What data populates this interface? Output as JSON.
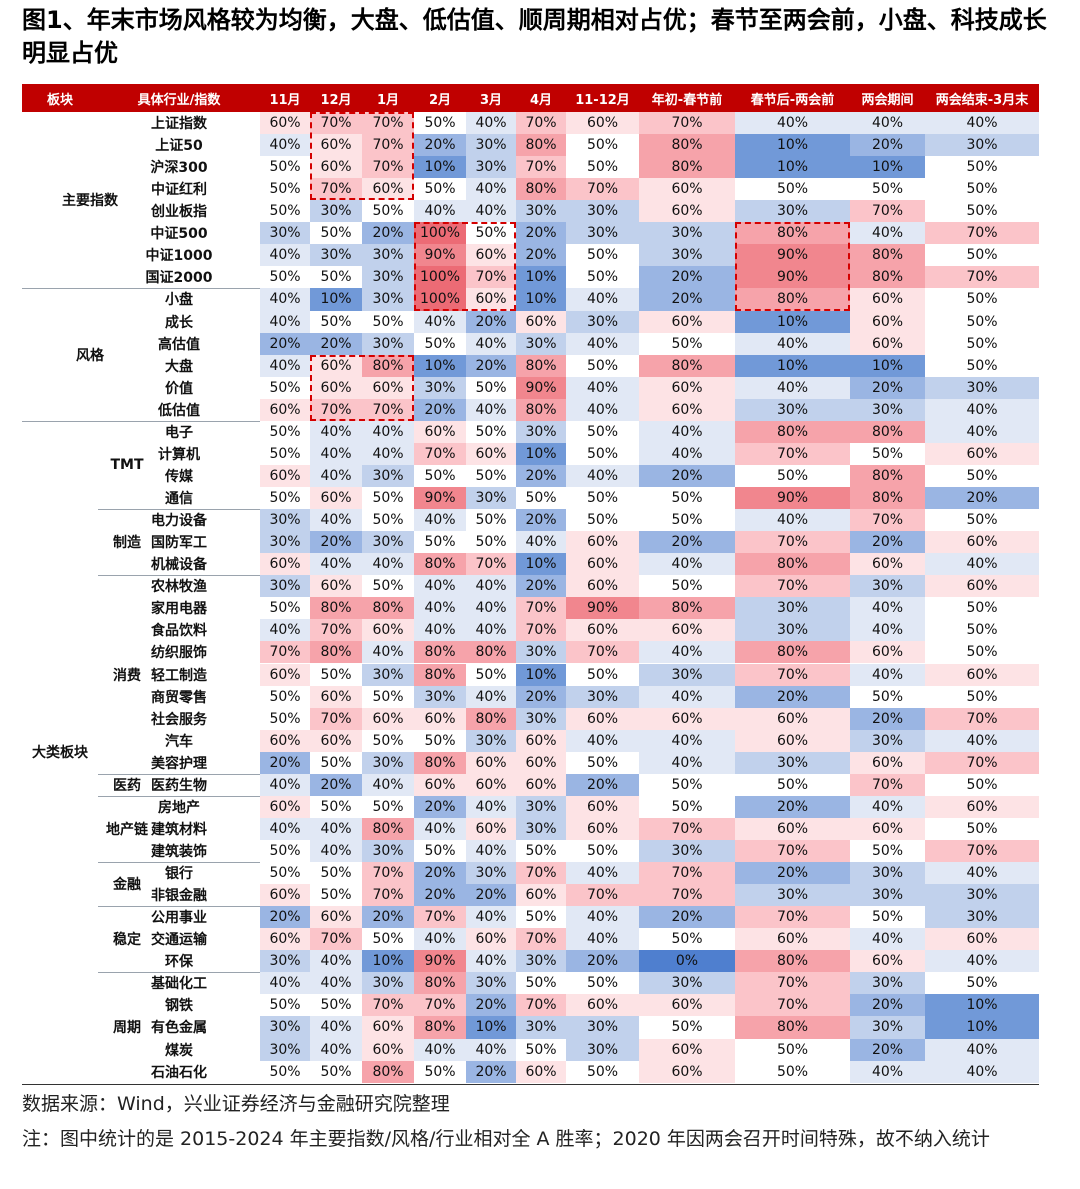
{
  "title": "图1、年末市场风格较为均衡，大盘、低估值、顺周期相对占优；春节至两会前，小盘、科技成长明显占优",
  "headers": [
    "板块",
    "具体行业/指数",
    "11月",
    "12月",
    "1月",
    "2月",
    "3月",
    "4月",
    "11-12月",
    "年初-春节前",
    "春节后-两会前",
    "两会期间",
    "两会结束-3月末"
  ],
  "groups": [
    {
      "label": "主要指数",
      "start": 0,
      "end": 8
    },
    {
      "label": "风格",
      "start": 8,
      "end": 14
    },
    {
      "label": "大类板块",
      "start": 14,
      "end": 44
    }
  ],
  "subgroups": [
    {
      "label": "TMT",
      "start": 14,
      "end": 18
    },
    {
      "label": "制造",
      "start": 18,
      "end": 21
    },
    {
      "label": "消费",
      "start": 21,
      "end": 30
    },
    {
      "label": "医药",
      "start": 30,
      "end": 31
    },
    {
      "label": "地产链",
      "start": 31,
      "end": 34
    },
    {
      "label": "金融",
      "start": 34,
      "end": 36
    },
    {
      "label": "稳定",
      "start": 36,
      "end": 39
    },
    {
      "label": "周期",
      "start": 39,
      "end": 44
    }
  ],
  "rows": [
    {
      "name": "上证指数",
      "values": [
        "60%",
        "70%",
        "70%",
        "50%",
        "40%",
        "70%",
        "60%",
        "70%",
        "40%",
        "40%",
        "40%"
      ]
    },
    {
      "name": "上证50",
      "values": [
        "40%",
        "60%",
        "70%",
        "20%",
        "30%",
        "80%",
        "50%",
        "80%",
        "10%",
        "20%",
        "30%"
      ]
    },
    {
      "name": "沪深300",
      "values": [
        "50%",
        "60%",
        "70%",
        "10%",
        "30%",
        "70%",
        "50%",
        "80%",
        "10%",
        "10%",
        "50%"
      ]
    },
    {
      "name": "中证红利",
      "values": [
        "50%",
        "70%",
        "60%",
        "50%",
        "40%",
        "80%",
        "70%",
        "60%",
        "50%",
        "50%",
        "50%"
      ]
    },
    {
      "name": "创业板指",
      "values": [
        "50%",
        "30%",
        "50%",
        "40%",
        "40%",
        "30%",
        "30%",
        "60%",
        "30%",
        "70%",
        "50%"
      ]
    },
    {
      "name": "中证500",
      "values": [
        "30%",
        "50%",
        "20%",
        "100%",
        "50%",
        "20%",
        "30%",
        "30%",
        "80%",
        "40%",
        "70%"
      ]
    },
    {
      "name": "中证1000",
      "values": [
        "40%",
        "30%",
        "30%",
        "90%",
        "60%",
        "20%",
        "50%",
        "30%",
        "90%",
        "80%",
        "50%"
      ]
    },
    {
      "name": "国证2000",
      "values": [
        "50%",
        "50%",
        "30%",
        "100%",
        "70%",
        "10%",
        "50%",
        "20%",
        "90%",
        "80%",
        "70%"
      ]
    },
    {
      "name": "小盘",
      "values": [
        "40%",
        "10%",
        "30%",
        "100%",
        "60%",
        "10%",
        "40%",
        "20%",
        "80%",
        "60%",
        "50%"
      ]
    },
    {
      "name": "成长",
      "values": [
        "40%",
        "50%",
        "50%",
        "40%",
        "20%",
        "60%",
        "30%",
        "60%",
        "10%",
        "60%",
        "50%"
      ]
    },
    {
      "name": "高估值",
      "values": [
        "20%",
        "20%",
        "30%",
        "50%",
        "40%",
        "30%",
        "40%",
        "50%",
        "40%",
        "60%",
        "50%"
      ]
    },
    {
      "name": "大盘",
      "values": [
        "40%",
        "60%",
        "80%",
        "10%",
        "20%",
        "80%",
        "50%",
        "80%",
        "10%",
        "10%",
        "50%"
      ]
    },
    {
      "name": "价值",
      "values": [
        "50%",
        "60%",
        "60%",
        "30%",
        "50%",
        "90%",
        "40%",
        "60%",
        "40%",
        "20%",
        "30%"
      ]
    },
    {
      "name": "低估值",
      "values": [
        "60%",
        "70%",
        "70%",
        "20%",
        "40%",
        "80%",
        "40%",
        "60%",
        "30%",
        "30%",
        "40%"
      ]
    },
    {
      "name": "电子",
      "values": [
        "50%",
        "40%",
        "40%",
        "60%",
        "50%",
        "30%",
        "50%",
        "40%",
        "80%",
        "80%",
        "40%"
      ]
    },
    {
      "name": "计算机",
      "values": [
        "50%",
        "40%",
        "40%",
        "70%",
        "60%",
        "10%",
        "50%",
        "40%",
        "70%",
        "50%",
        "60%"
      ]
    },
    {
      "name": "传媒",
      "values": [
        "60%",
        "40%",
        "30%",
        "50%",
        "50%",
        "20%",
        "40%",
        "20%",
        "50%",
        "80%",
        "50%"
      ]
    },
    {
      "name": "通信",
      "values": [
        "50%",
        "60%",
        "50%",
        "90%",
        "30%",
        "50%",
        "50%",
        "50%",
        "90%",
        "80%",
        "20%"
      ]
    },
    {
      "name": "电力设备",
      "values": [
        "30%",
        "40%",
        "50%",
        "40%",
        "50%",
        "20%",
        "50%",
        "50%",
        "40%",
        "70%",
        "50%"
      ]
    },
    {
      "name": "国防军工",
      "values": [
        "30%",
        "20%",
        "30%",
        "50%",
        "50%",
        "40%",
        "60%",
        "20%",
        "70%",
        "20%",
        "60%"
      ]
    },
    {
      "name": "机械设备",
      "values": [
        "60%",
        "40%",
        "40%",
        "80%",
        "70%",
        "10%",
        "60%",
        "40%",
        "80%",
        "60%",
        "40%"
      ]
    },
    {
      "name": "农林牧渔",
      "values": [
        "30%",
        "60%",
        "50%",
        "40%",
        "40%",
        "20%",
        "60%",
        "50%",
        "70%",
        "30%",
        "60%"
      ]
    },
    {
      "name": "家用电器",
      "values": [
        "50%",
        "80%",
        "80%",
        "40%",
        "40%",
        "70%",
        "90%",
        "80%",
        "30%",
        "40%",
        "50%"
      ]
    },
    {
      "name": "食品饮料",
      "values": [
        "40%",
        "70%",
        "60%",
        "40%",
        "40%",
        "70%",
        "60%",
        "60%",
        "30%",
        "40%",
        "50%"
      ]
    },
    {
      "name": "纺织服饰",
      "values": [
        "70%",
        "80%",
        "40%",
        "80%",
        "80%",
        "30%",
        "70%",
        "40%",
        "80%",
        "60%",
        "50%"
      ]
    },
    {
      "name": "轻工制造",
      "values": [
        "60%",
        "50%",
        "30%",
        "80%",
        "50%",
        "10%",
        "50%",
        "30%",
        "70%",
        "40%",
        "60%"
      ]
    },
    {
      "name": "商贸零售",
      "values": [
        "50%",
        "60%",
        "50%",
        "30%",
        "40%",
        "20%",
        "30%",
        "40%",
        "20%",
        "50%",
        "50%"
      ]
    },
    {
      "name": "社会服务",
      "values": [
        "50%",
        "70%",
        "60%",
        "60%",
        "80%",
        "30%",
        "60%",
        "60%",
        "60%",
        "20%",
        "70%"
      ]
    },
    {
      "name": "汽车",
      "values": [
        "60%",
        "60%",
        "50%",
        "50%",
        "30%",
        "60%",
        "40%",
        "40%",
        "60%",
        "30%",
        "40%"
      ]
    },
    {
      "name": "美容护理",
      "values": [
        "20%",
        "50%",
        "30%",
        "80%",
        "60%",
        "60%",
        "50%",
        "40%",
        "30%",
        "60%",
        "70%"
      ]
    },
    {
      "name": "医药生物",
      "values": [
        "40%",
        "20%",
        "40%",
        "60%",
        "60%",
        "60%",
        "20%",
        "50%",
        "50%",
        "70%",
        "50%"
      ]
    },
    {
      "name": "房地产",
      "values": [
        "60%",
        "50%",
        "50%",
        "20%",
        "40%",
        "30%",
        "60%",
        "50%",
        "20%",
        "40%",
        "60%"
      ]
    },
    {
      "name": "建筑材料",
      "values": [
        "40%",
        "40%",
        "80%",
        "40%",
        "60%",
        "30%",
        "60%",
        "70%",
        "60%",
        "60%",
        "50%"
      ]
    },
    {
      "name": "建筑装饰",
      "values": [
        "50%",
        "40%",
        "30%",
        "50%",
        "40%",
        "50%",
        "50%",
        "30%",
        "70%",
        "50%",
        "70%"
      ]
    },
    {
      "name": "银行",
      "values": [
        "50%",
        "50%",
        "70%",
        "20%",
        "30%",
        "70%",
        "40%",
        "70%",
        "20%",
        "30%",
        "40%"
      ]
    },
    {
      "name": "非银金融",
      "values": [
        "60%",
        "50%",
        "70%",
        "20%",
        "20%",
        "60%",
        "70%",
        "70%",
        "30%",
        "30%",
        "30%"
      ]
    },
    {
      "name": "公用事业",
      "values": [
        "20%",
        "60%",
        "20%",
        "70%",
        "40%",
        "50%",
        "40%",
        "20%",
        "70%",
        "50%",
        "30%"
      ]
    },
    {
      "name": "交通运输",
      "values": [
        "60%",
        "70%",
        "50%",
        "40%",
        "60%",
        "70%",
        "40%",
        "50%",
        "60%",
        "40%",
        "60%"
      ]
    },
    {
      "name": "环保",
      "values": [
        "30%",
        "40%",
        "10%",
        "90%",
        "40%",
        "30%",
        "20%",
        "0%",
        "80%",
        "60%",
        "40%"
      ]
    },
    {
      "name": "基础化工",
      "values": [
        "40%",
        "40%",
        "30%",
        "80%",
        "30%",
        "50%",
        "50%",
        "30%",
        "70%",
        "30%",
        "50%"
      ]
    },
    {
      "name": "钢铁",
      "values": [
        "50%",
        "50%",
        "70%",
        "70%",
        "20%",
        "70%",
        "60%",
        "60%",
        "70%",
        "20%",
        "10%"
      ]
    },
    {
      "name": "有色金属",
      "values": [
        "30%",
        "40%",
        "60%",
        "80%",
        "10%",
        "30%",
        "30%",
        "50%",
        "80%",
        "30%",
        "10%"
      ]
    },
    {
      "name": "煤炭",
      "values": [
        "30%",
        "40%",
        "60%",
        "40%",
        "40%",
        "50%",
        "30%",
        "60%",
        "50%",
        "20%",
        "40%"
      ]
    },
    {
      "name": "石油石化",
      "values": [
        "50%",
        "50%",
        "80%",
        "50%",
        "20%",
        "60%",
        "50%",
        "60%",
        "50%",
        "40%",
        "40%"
      ]
    }
  ],
  "highlights": [
    {
      "row_start": 0,
      "row_end": 4,
      "col_start": 1,
      "col_end": 3
    },
    {
      "row_start": 5,
      "row_end": 9,
      "col_start": 3,
      "col_end": 5
    },
    {
      "row_start": 5,
      "row_end": 9,
      "col_start": 8,
      "col_end": 9
    },
    {
      "row_start": 11,
      "row_end": 14,
      "col_start": 1,
      "col_end": 3
    }
  ],
  "source": "数据来源：Wind，兴业证券经济与金融研究院整理",
  "note": "注：图中统计的是 2015-2024 年主要指数/风格/行业相对全 A 胜率；2020 年因两会召开时间特殊，故不纳入统计"
}
